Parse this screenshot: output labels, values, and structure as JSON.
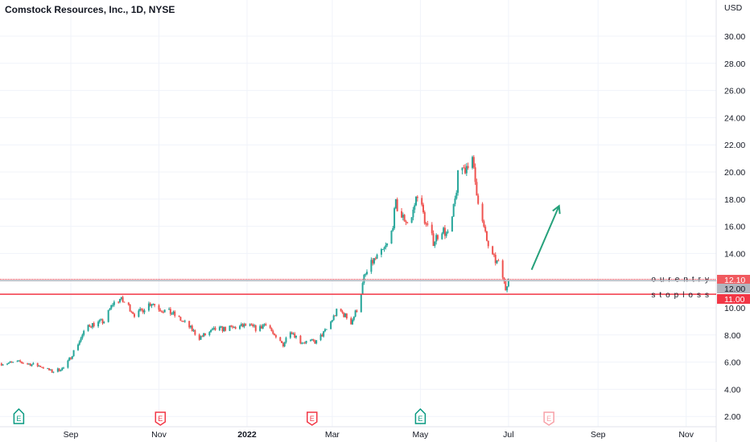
{
  "header": {
    "title": "Comstock Resources, Inc., 1D, NYSE"
  },
  "chart_data": {
    "type": "candlestick",
    "title": "Comstock Resources, Inc., 1D, NYSE",
    "currency": "USD",
    "ylim": [
      1,
      31
    ],
    "y_ticks": [
      "2.00",
      "4.00",
      "6.00",
      "8.00",
      "10.00",
      "12.00",
      "14.00",
      "16.00",
      "18.00",
      "20.00",
      "22.00",
      "24.00",
      "26.00",
      "28.00",
      "30.00"
    ],
    "x_ticks": [
      {
        "label": "Sep",
        "date": "2021-09-01"
      },
      {
        "label": "Nov",
        "date": "2021-11-01"
      },
      {
        "label": "2022",
        "date": "2022-01-01"
      },
      {
        "label": "Mar",
        "date": "2022-03-01"
      },
      {
        "label": "May",
        "date": "2022-05-01"
      },
      {
        "label": "Jul",
        "date": "2022-07-01"
      },
      {
        "label": "Sep",
        "date": "2022-09-01"
      },
      {
        "label": "Nov",
        "date": "2022-11-01"
      }
    ],
    "approx_closes": [
      [
        "2021-07-15",
        5.9
      ],
      [
        "2021-07-28",
        6.0
      ],
      [
        "2021-08-11",
        5.7
      ],
      [
        "2021-08-19",
        5.3
      ],
      [
        "2021-08-28",
        5.6
      ],
      [
        "2021-09-05",
        7.2
      ],
      [
        "2021-09-13",
        8.7
      ],
      [
        "2021-09-24",
        9.0
      ],
      [
        "2021-09-30",
        10.3
      ],
      [
        "2021-10-05",
        10.65
      ],
      [
        "2021-10-11",
        10.1
      ],
      [
        "2021-10-16",
        9.4
      ],
      [
        "2021-10-24",
        10.2
      ],
      [
        "2021-10-27",
        10.4
      ],
      [
        "2021-11-02",
        9.9
      ],
      [
        "2021-11-10",
        9.6
      ],
      [
        "2021-11-21",
        8.7
      ],
      [
        "2021-11-29",
        7.8
      ],
      [
        "2021-12-10",
        8.4
      ],
      [
        "2021-12-21",
        8.5
      ],
      [
        "2022-01-01",
        8.7
      ],
      [
        "2022-01-09",
        8.4
      ],
      [
        "2022-01-15",
        9.0
      ],
      [
        "2022-01-20",
        7.8
      ],
      [
        "2022-01-26",
        7.3
      ],
      [
        "2022-01-31",
        8.4
      ],
      [
        "2022-02-07",
        7.5
      ],
      [
        "2022-02-18",
        7.5
      ],
      [
        "2022-02-25",
        8.4
      ],
      [
        "2022-03-05",
        9.9
      ],
      [
        "2022-03-11",
        9.3
      ],
      [
        "2022-03-13",
        8.7
      ],
      [
        "2022-03-19",
        10.1
      ],
      [
        "2022-03-23",
        12.2
      ],
      [
        "2022-03-29",
        13.4
      ],
      [
        "2022-04-04",
        14.0
      ],
      [
        "2022-04-10",
        14.9
      ],
      [
        "2022-04-14",
        17.6
      ],
      [
        "2022-04-18",
        16.7
      ],
      [
        "2022-04-24",
        16.2
      ],
      [
        "2022-04-29",
        18.5
      ],
      [
        "2022-05-05",
        16.1
      ],
      [
        "2022-05-10",
        14.9
      ],
      [
        "2022-05-16",
        15.8
      ],
      [
        "2022-05-21",
        15.2
      ],
      [
        "2022-05-25",
        17.9
      ],
      [
        "2022-05-28",
        20.5
      ],
      [
        "2022-06-01",
        20.2
      ],
      [
        "2022-06-05",
        21.4
      ],
      [
        "2022-06-08",
        19.3
      ],
      [
        "2022-06-12",
        16.7
      ],
      [
        "2022-06-16",
        14.9
      ],
      [
        "2022-06-20",
        13.7
      ],
      [
        "2022-06-25",
        13.1
      ],
      [
        "2022-06-29",
        11.4
      ],
      [
        "2022-07-01",
        12.3
      ],
      [
        "2022-07-03",
        12.0
      ]
    ],
    "levels": [
      {
        "price": 12.1,
        "label": "12.10",
        "color": "#f23645",
        "style": "dotted",
        "text": "ourentry"
      },
      {
        "price": 12.0,
        "label": "12.00",
        "color": "#b2b5be",
        "style": "solid"
      },
      {
        "price": 11.0,
        "label": "11.00",
        "color": "#f23645",
        "style": "solid",
        "text": "stoploss"
      }
    ],
    "earnings_markers": [
      {
        "date": "2021-07-27",
        "label": "E",
        "color": "#089981"
      },
      {
        "date": "2021-11-02",
        "label": "E",
        "color": "#f23645"
      },
      {
        "date": "2022-02-15",
        "label": "E",
        "color": "#f23645"
      },
      {
        "date": "2022-05-01",
        "label": "E",
        "color": "#089981"
      },
      {
        "date": "2022-07-29",
        "label": "E",
        "color": "#f7a1a8"
      }
    ],
    "arrow": {
      "from": [
        "2022-07-17",
        12.8
      ],
      "to": [
        "2022-08-05",
        17.5
      ],
      "color": "#26a17b"
    },
    "colors": {
      "up": "#26a69a",
      "down": "#ef5350",
      "grid": "#f0f3fa"
    }
  }
}
